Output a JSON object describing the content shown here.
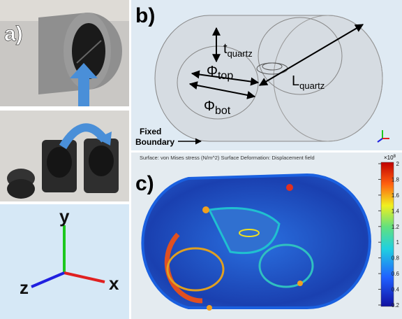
{
  "panel_a": {
    "label": "a)",
    "axes": {
      "y": "y",
      "z": "z",
      "x": "x"
    }
  },
  "panel_b": {
    "label": "b)",
    "t_quartz": {
      "main": "t",
      "sub": "quartz"
    },
    "phi_top": {
      "main": "Φ",
      "sub": "top"
    },
    "phi_bot": {
      "main": "Φ",
      "sub": "bot"
    },
    "l_quartz": {
      "main": "L",
      "sub": "quartz"
    },
    "fixed_boundary": [
      "Fixed",
      "Boundary"
    ]
  },
  "panel_c": {
    "label": "c)",
    "caption": "Surface: von Mises stress (N/m^2)   Surface Deformation: Displacement field",
    "colorbar": {
      "multiplier": "×10",
      "exponent": "8",
      "lim": [
        0.2,
        2
      ],
      "ticks": [
        2,
        1.8,
        1.6,
        1.4,
        1.2,
        1,
        0.8,
        0.6,
        0.4,
        0.2
      ]
    }
  }
}
